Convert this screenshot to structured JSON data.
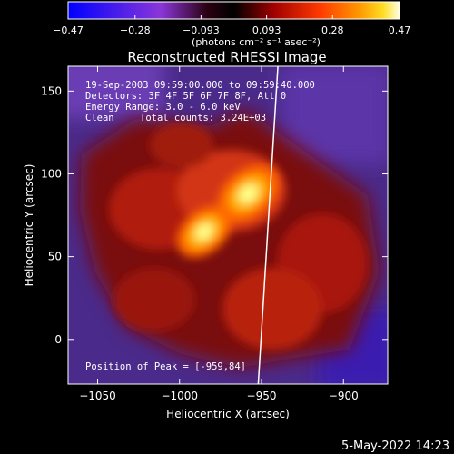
{
  "chart_data": {
    "type": "heatmap",
    "title": "Reconstructed RHESSI Image",
    "xlabel": "Heliocentric X (arcsec)",
    "ylabel": "Heliocentric Y (arcsec)",
    "xlim": [
      -1068,
      -873
    ],
    "ylim": [
      -27,
      165
    ],
    "xticks": [
      -1050,
      -1000,
      -950,
      -900
    ],
    "xtick_labels": [
      "−1050",
      "−1000",
      "−950",
      "−900"
    ],
    "yticks": [
      0,
      50,
      100,
      150
    ],
    "ytick_labels": [
      "0",
      "50",
      "100",
      "150"
    ],
    "colorbar": {
      "range": [
        -0.47,
        0.47
      ],
      "ticks": [
        -0.47,
        -0.28,
        -0.093,
        0.093,
        0.28,
        0.47
      ],
      "tick_labels": [
        "−0.47",
        "−0.28",
        "−0.093",
        "0.093",
        "0.28",
        "0.47"
      ],
      "unit_label": "(photons cm⁻² s⁻¹ asec⁻²)"
    },
    "annotations": [
      "19-Sep-2003 09:59:00.000 to 09:59:40.000",
      "Detectors: 3F 4F 5F 6F 7F 8F, Att 0",
      "Energy Range: 3.0 - 6.0 keV",
      "Clean",
      "Total counts: 3.24E+03"
    ],
    "peak": {
      "label": "Position of Peak = [-959,84]",
      "x": -959,
      "y": 84
    },
    "limb_line": [
      [
        -940,
        165
      ],
      [
        -952,
        -27
      ]
    ],
    "sources": [
      {
        "x": -958,
        "y": 88,
        "intensity": 0.47
      },
      {
        "x": -985,
        "y": 65,
        "intensity": 0.42
      }
    ]
  },
  "footer": {
    "timestamp": "5-May-2022 14:23"
  }
}
